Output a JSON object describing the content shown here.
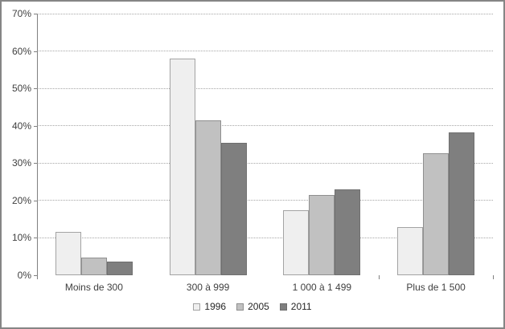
{
  "chart_data": {
    "type": "bar",
    "title": "",
    "xlabel": "",
    "ylabel": "",
    "categories": [
      "Moins de 300",
      "300 à 999",
      "1 000 à 1 499",
      "Plus de 1 500"
    ],
    "series": [
      {
        "name": "1996",
        "values": [
          11.7,
          58.0,
          17.3,
          12.8
        ],
        "fill": "#efefef",
        "border": "#a3a3a3"
      },
      {
        "name": "2005",
        "values": [
          4.7,
          41.5,
          21.4,
          32.7
        ],
        "fill": "#c1c1c1",
        "border": "#8f8f8f"
      },
      {
        "name": "2011",
        "values": [
          3.6,
          35.4,
          23.0,
          38.3
        ],
        "fill": "#7f7f7f",
        "border": "#6f6f6f"
      }
    ],
    "ylim": [
      0,
      70
    ],
    "y_ticks": [
      0,
      10,
      20,
      30,
      40,
      50,
      60,
      70
    ],
    "y_tick_suffix": "%",
    "grid": "horizontal-dotted",
    "legend_position": "bottom-center"
  },
  "colors": {
    "background": "#ffffff",
    "frame_border": "#858585",
    "axis": "#808080",
    "gridline": "#a6a6a6",
    "axis_text": "#3f3f3f",
    "legend_text": "#262626"
  }
}
